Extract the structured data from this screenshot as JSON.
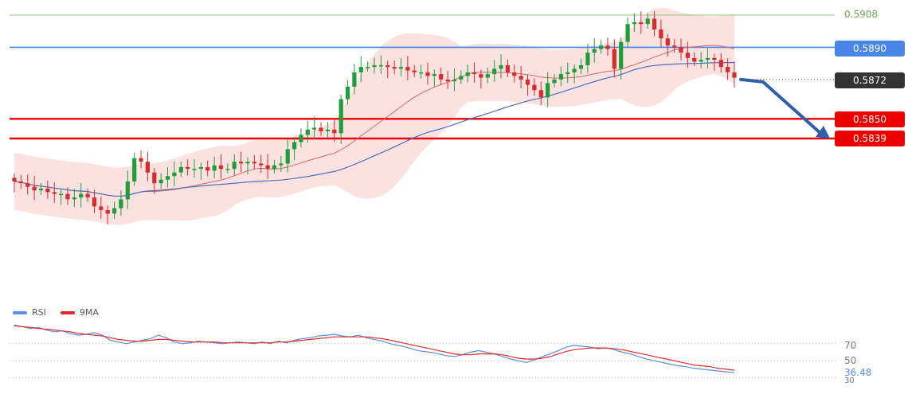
{
  "chart_data": [
    {
      "type": "candlestick",
      "title": "",
      "ylim": [
        0.579,
        0.5912
      ],
      "horizontal_levels": [
        {
          "value": 0.5908,
          "label": "0.5908",
          "color": "#93c47d",
          "style": "thin"
        },
        {
          "value": 0.589,
          "label": "0.5890",
          "color": "#4a86e8",
          "style": "line"
        },
        {
          "value": 0.5872,
          "label": "0.5872",
          "color": "#333333",
          "style": "dotted"
        },
        {
          "value": 0.585,
          "label": "0.5850",
          "color": "#ee0000",
          "style": "thick"
        },
        {
          "value": 0.5839,
          "label": "0.5839",
          "color": "#ee0000",
          "style": "thick"
        }
      ],
      "projection_arrow": {
        "from": 0.5872,
        "to": 0.5839,
        "color": "#2e5fa8"
      },
      "closes": [
        0.5815,
        0.5814,
        0.5812,
        0.581,
        0.5811,
        0.5809,
        0.5808,
        0.5808,
        0.5805,
        0.5806,
        0.5808,
        0.5806,
        0.5801,
        0.5799,
        0.5797,
        0.58,
        0.5805,
        0.5815,
        0.5828,
        0.5826,
        0.582,
        0.5814,
        0.5816,
        0.5818,
        0.582,
        0.5823,
        0.5822,
        0.5822,
        0.5823,
        0.5821,
        0.5824,
        0.5822,
        0.5822,
        0.5826,
        0.5825,
        0.5826,
        0.5825,
        0.5824,
        0.5822,
        0.5824,
        0.5825,
        0.5833,
        0.5837,
        0.5841,
        0.5844,
        0.5845,
        0.5843,
        0.5844,
        0.5842,
        0.5861,
        0.5868,
        0.5876,
        0.5879,
        0.5879,
        0.588,
        0.588,
        0.5879,
        0.5878,
        0.5879,
        0.5877,
        0.5876,
        0.5876,
        0.5874,
        0.5875,
        0.5872,
        0.5871,
        0.5872,
        0.5874,
        0.5876,
        0.5875,
        0.5873,
        0.5875,
        0.5878,
        0.588,
        0.5876,
        0.5874,
        0.5872,
        0.5869,
        0.5866,
        0.5862,
        0.587,
        0.5872,
        0.5875,
        0.5876,
        0.5878,
        0.588,
        0.5887,
        0.5889,
        0.5891,
        0.5889,
        0.5878,
        0.5893,
        0.5903,
        0.5904,
        0.5903,
        0.5906,
        0.59,
        0.5895,
        0.5891,
        0.589,
        0.5887,
        0.5884,
        0.5882,
        0.5883,
        0.5884,
        0.5883,
        0.5879,
        0.5876,
        0.5873
      ],
      "moving_averages": [
        {
          "name": "",
          "color": "#e06666",
          "period": 20
        },
        {
          "name": "",
          "color": "#4a6fbf",
          "period": 50
        }
      ],
      "bollinger_bands": {
        "fill": "#f9c9c9"
      }
    },
    {
      "type": "line",
      "title": "",
      "legend": [
        {
          "name": "RSI",
          "color": "#5b8def"
        },
        {
          "name": "9MA",
          "color": "#e32b2b"
        }
      ],
      "ylim": [
        25,
        95
      ],
      "yticks": [
        70,
        50,
        30
      ],
      "current_value": "36.48",
      "series": [
        {
          "name": "RSI",
          "color": "#5b8def",
          "values": [
            92,
            90,
            88,
            89,
            86,
            84,
            85,
            82,
            80,
            81,
            83,
            80,
            74,
            72,
            70,
            72,
            74,
            76,
            80,
            77,
            72,
            70,
            71,
            73,
            72,
            71,
            70,
            71,
            72,
            71,
            70,
            72,
            70,
            73,
            71,
            74,
            76,
            77,
            79,
            80,
            81,
            79,
            78,
            80,
            77,
            75,
            73,
            70,
            68,
            66,
            63,
            61,
            60,
            58,
            56,
            55,
            57,
            60,
            62,
            60,
            58,
            55,
            52,
            50,
            48,
            51,
            55,
            58,
            62,
            66,
            68,
            67,
            66,
            64,
            65,
            63,
            60,
            58,
            55,
            52,
            50,
            48,
            46,
            44,
            43,
            41,
            40,
            39,
            38,
            37,
            36
          ]
        },
        {
          "name": "9MA",
          "color": "#e32b2b",
          "values": [
            91,
            90,
            89,
            88,
            87,
            86,
            85,
            84,
            82,
            81,
            80,
            79,
            77,
            75,
            74,
            73,
            73,
            74,
            75,
            75,
            74,
            73,
            72,
            72,
            72,
            72,
            71,
            71,
            71,
            71,
            71,
            71,
            71,
            72,
            72,
            73,
            74,
            75,
            76,
            77,
            78,
            78,
            78,
            78,
            78,
            77,
            76,
            74,
            72,
            70,
            68,
            66,
            64,
            62,
            60,
            58,
            57,
            57,
            58,
            58,
            58,
            57,
            55,
            53,
            52,
            52,
            53,
            55,
            58,
            61,
            63,
            64,
            65,
            65,
            65,
            64,
            63,
            61,
            59,
            57,
            55,
            53,
            51,
            49,
            47,
            45,
            44,
            43,
            41,
            40,
            39
          ]
        }
      ]
    }
  ],
  "labels": {
    "level_5908": "0.5908",
    "level_5890": "0.5890",
    "level_5872": "0.5872",
    "level_5850": "0.5850",
    "level_5839": "0.5839",
    "rsi_legend": "RSI",
    "ma_legend": "9MA",
    "rsi_tick_70": "70",
    "rsi_tick_50": "50",
    "rsi_tick_30": "30",
    "rsi_value": "36.48"
  }
}
